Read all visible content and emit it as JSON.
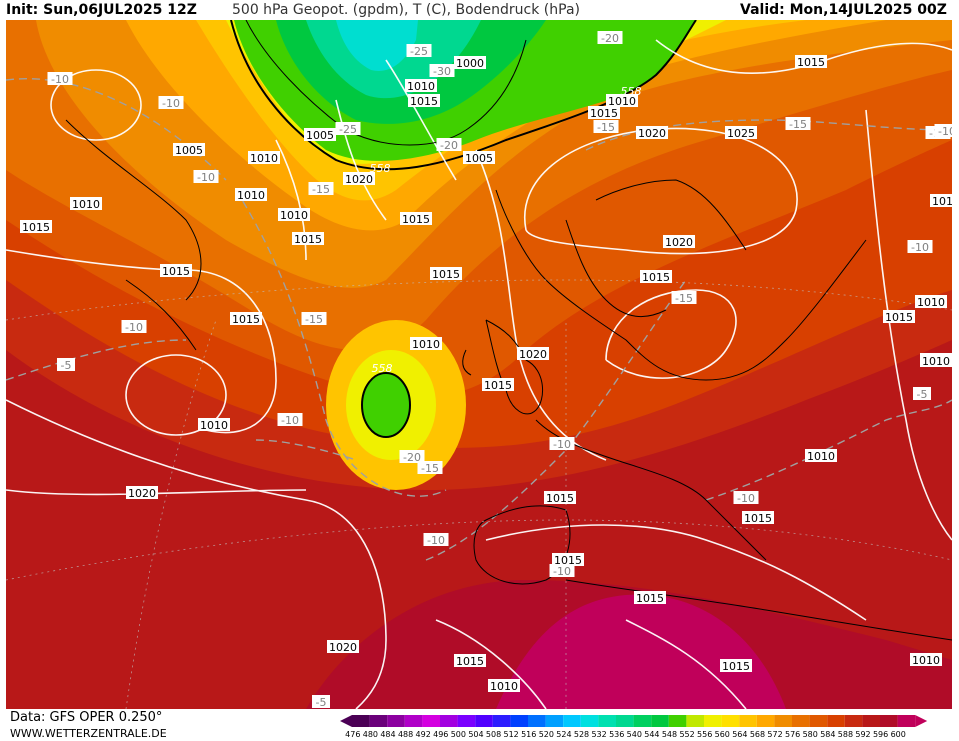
{
  "header": {
    "init": "Init: Sun,06JUL2025 12Z",
    "parameter": "500 hPa Geopot. (gpdm), T (C), Bodendruck (hPa)",
    "valid": "Valid: Mon,14JUL2025 00Z"
  },
  "footer": {
    "data_source": "Data: GFS OPER 0.250°",
    "website": "WWW.WETTERZENTRALE.DE"
  },
  "legend": {
    "values": [
      "476",
      "480",
      "484",
      "488",
      "492",
      "496",
      "500",
      "504",
      "508",
      "512",
      "516",
      "520",
      "524",
      "528",
      "532",
      "536",
      "540",
      "544",
      "548",
      "552",
      "556",
      "560",
      "564",
      "568",
      "572",
      "576",
      "580",
      "584",
      "588",
      "592",
      "596",
      "600"
    ],
    "colors": [
      "#4b0055",
      "#6a007a",
      "#8c00a0",
      "#b000c8",
      "#d400e0",
      "#a200e0",
      "#7a00ff",
      "#5000ff",
      "#2c1cff",
      "#0040ff",
      "#0070ff",
      "#00a0ff",
      "#00c8ff",
      "#00e0e0",
      "#00e0b0",
      "#00d890",
      "#00d060",
      "#00c840",
      "#40d000",
      "#c0e800",
      "#f0f000",
      "#ffe000",
      "#ffc400",
      "#ffa800",
      "#f08c00",
      "#e87000",
      "#e05800",
      "#d84000",
      "#c82a10",
      "#b81818",
      "#b00c28",
      "#c0005a"
    ]
  },
  "map": {
    "pressure_labels": [
      {
        "text": "1000",
        "id": "p1"
      },
      {
        "text": "1010",
        "id": "p2"
      },
      {
        "text": "1015",
        "id": "p3"
      },
      {
        "text": "1005",
        "id": "p4"
      },
      {
        "text": "1015",
        "id": "p5"
      },
      {
        "text": "1010",
        "id": "p6"
      },
      {
        "text": "1020",
        "id": "p7"
      },
      {
        "text": "1025",
        "id": "p8"
      },
      {
        "text": "1015",
        "id": "p9"
      },
      {
        "text": "1005",
        "id": "p10"
      },
      {
        "text": "1010",
        "id": "p11"
      },
      {
        "text": "1005",
        "id": "p12"
      },
      {
        "text": "1010",
        "id": "p13"
      },
      {
        "text": "1020",
        "id": "p14"
      },
      {
        "text": "1010",
        "id": "p15"
      },
      {
        "text": "1015",
        "id": "p16"
      },
      {
        "text": "1015",
        "id": "p17"
      },
      {
        "text": "1010",
        "id": "p18"
      },
      {
        "text": "1015",
        "id": "p19"
      },
      {
        "text": "1015",
        "id": "p20"
      },
      {
        "text": "1020",
        "id": "p21"
      },
      {
        "text": "1015",
        "id": "p22"
      },
      {
        "text": "1015",
        "id": "p23"
      },
      {
        "text": "1010",
        "id": "p24"
      },
      {
        "text": "1015",
        "id": "p25"
      },
      {
        "text": "1010",
        "id": "p26"
      },
      {
        "text": "1020",
        "id": "p27"
      },
      {
        "text": "1015",
        "id": "p28"
      },
      {
        "text": "1015",
        "id": "p29"
      },
      {
        "text": "1010",
        "id": "p30"
      },
      {
        "text": "1015",
        "id": "p31"
      },
      {
        "text": "1015",
        "id": "p32"
      },
      {
        "text": "1015",
        "id": "p33"
      },
      {
        "text": "1015",
        "id": "p34"
      },
      {
        "text": "1020",
        "id": "p35"
      },
      {
        "text": "1015",
        "id": "p36"
      },
      {
        "text": "1010",
        "id": "p37"
      },
      {
        "text": "1015",
        "id": "p38"
      },
      {
        "text": "1010",
        "id": "p39"
      },
      {
        "text": "1010",
        "id": "p40"
      },
      {
        "text": "1015",
        "id": "p41"
      },
      {
        "text": "1010",
        "id": "p42"
      },
      {
        "text": "1010",
        "id": "p43"
      },
      {
        "text": "1020",
        "id": "p44"
      }
    ],
    "temperature_labels": [
      {
        "text": "-25",
        "id": "t1"
      },
      {
        "text": "-30",
        "id": "t2"
      },
      {
        "text": "-20",
        "id": "t3"
      },
      {
        "text": "-10",
        "id": "t4"
      },
      {
        "text": "-10",
        "id": "t5"
      },
      {
        "text": "-25",
        "id": "t6"
      },
      {
        "text": "-20",
        "id": "t7"
      },
      {
        "text": "-15",
        "id": "t8"
      },
      {
        "text": "-15",
        "id": "t9"
      },
      {
        "text": "-15",
        "id": "t10"
      },
      {
        "text": "-10",
        "id": "t11"
      },
      {
        "text": "-10",
        "id": "t12"
      },
      {
        "text": "-15",
        "id": "t13"
      },
      {
        "text": "-15",
        "id": "t14"
      },
      {
        "text": "-10",
        "id": "t15"
      },
      {
        "text": "-5",
        "id": "t16"
      },
      {
        "text": "-10",
        "id": "t17"
      },
      {
        "text": "-20",
        "id": "t18"
      },
      {
        "text": "-15",
        "id": "t19"
      },
      {
        "text": "-10",
        "id": "t20"
      },
      {
        "text": "-10",
        "id": "t21"
      },
      {
        "text": "-10",
        "id": "t22"
      },
      {
        "text": "-10",
        "id": "t23"
      },
      {
        "text": "-5",
        "id": "t24"
      },
      {
        "text": "-5",
        "id": "t25"
      },
      {
        "text": "-10",
        "id": "t26"
      },
      {
        "text": "-10",
        "id": "t27"
      }
    ],
    "geopotential_labels": [
      {
        "text": "558",
        "id": "g1"
      },
      {
        "text": "558",
        "id": "g2"
      },
      {
        "text": "558",
        "id": "g3"
      }
    ]
  }
}
